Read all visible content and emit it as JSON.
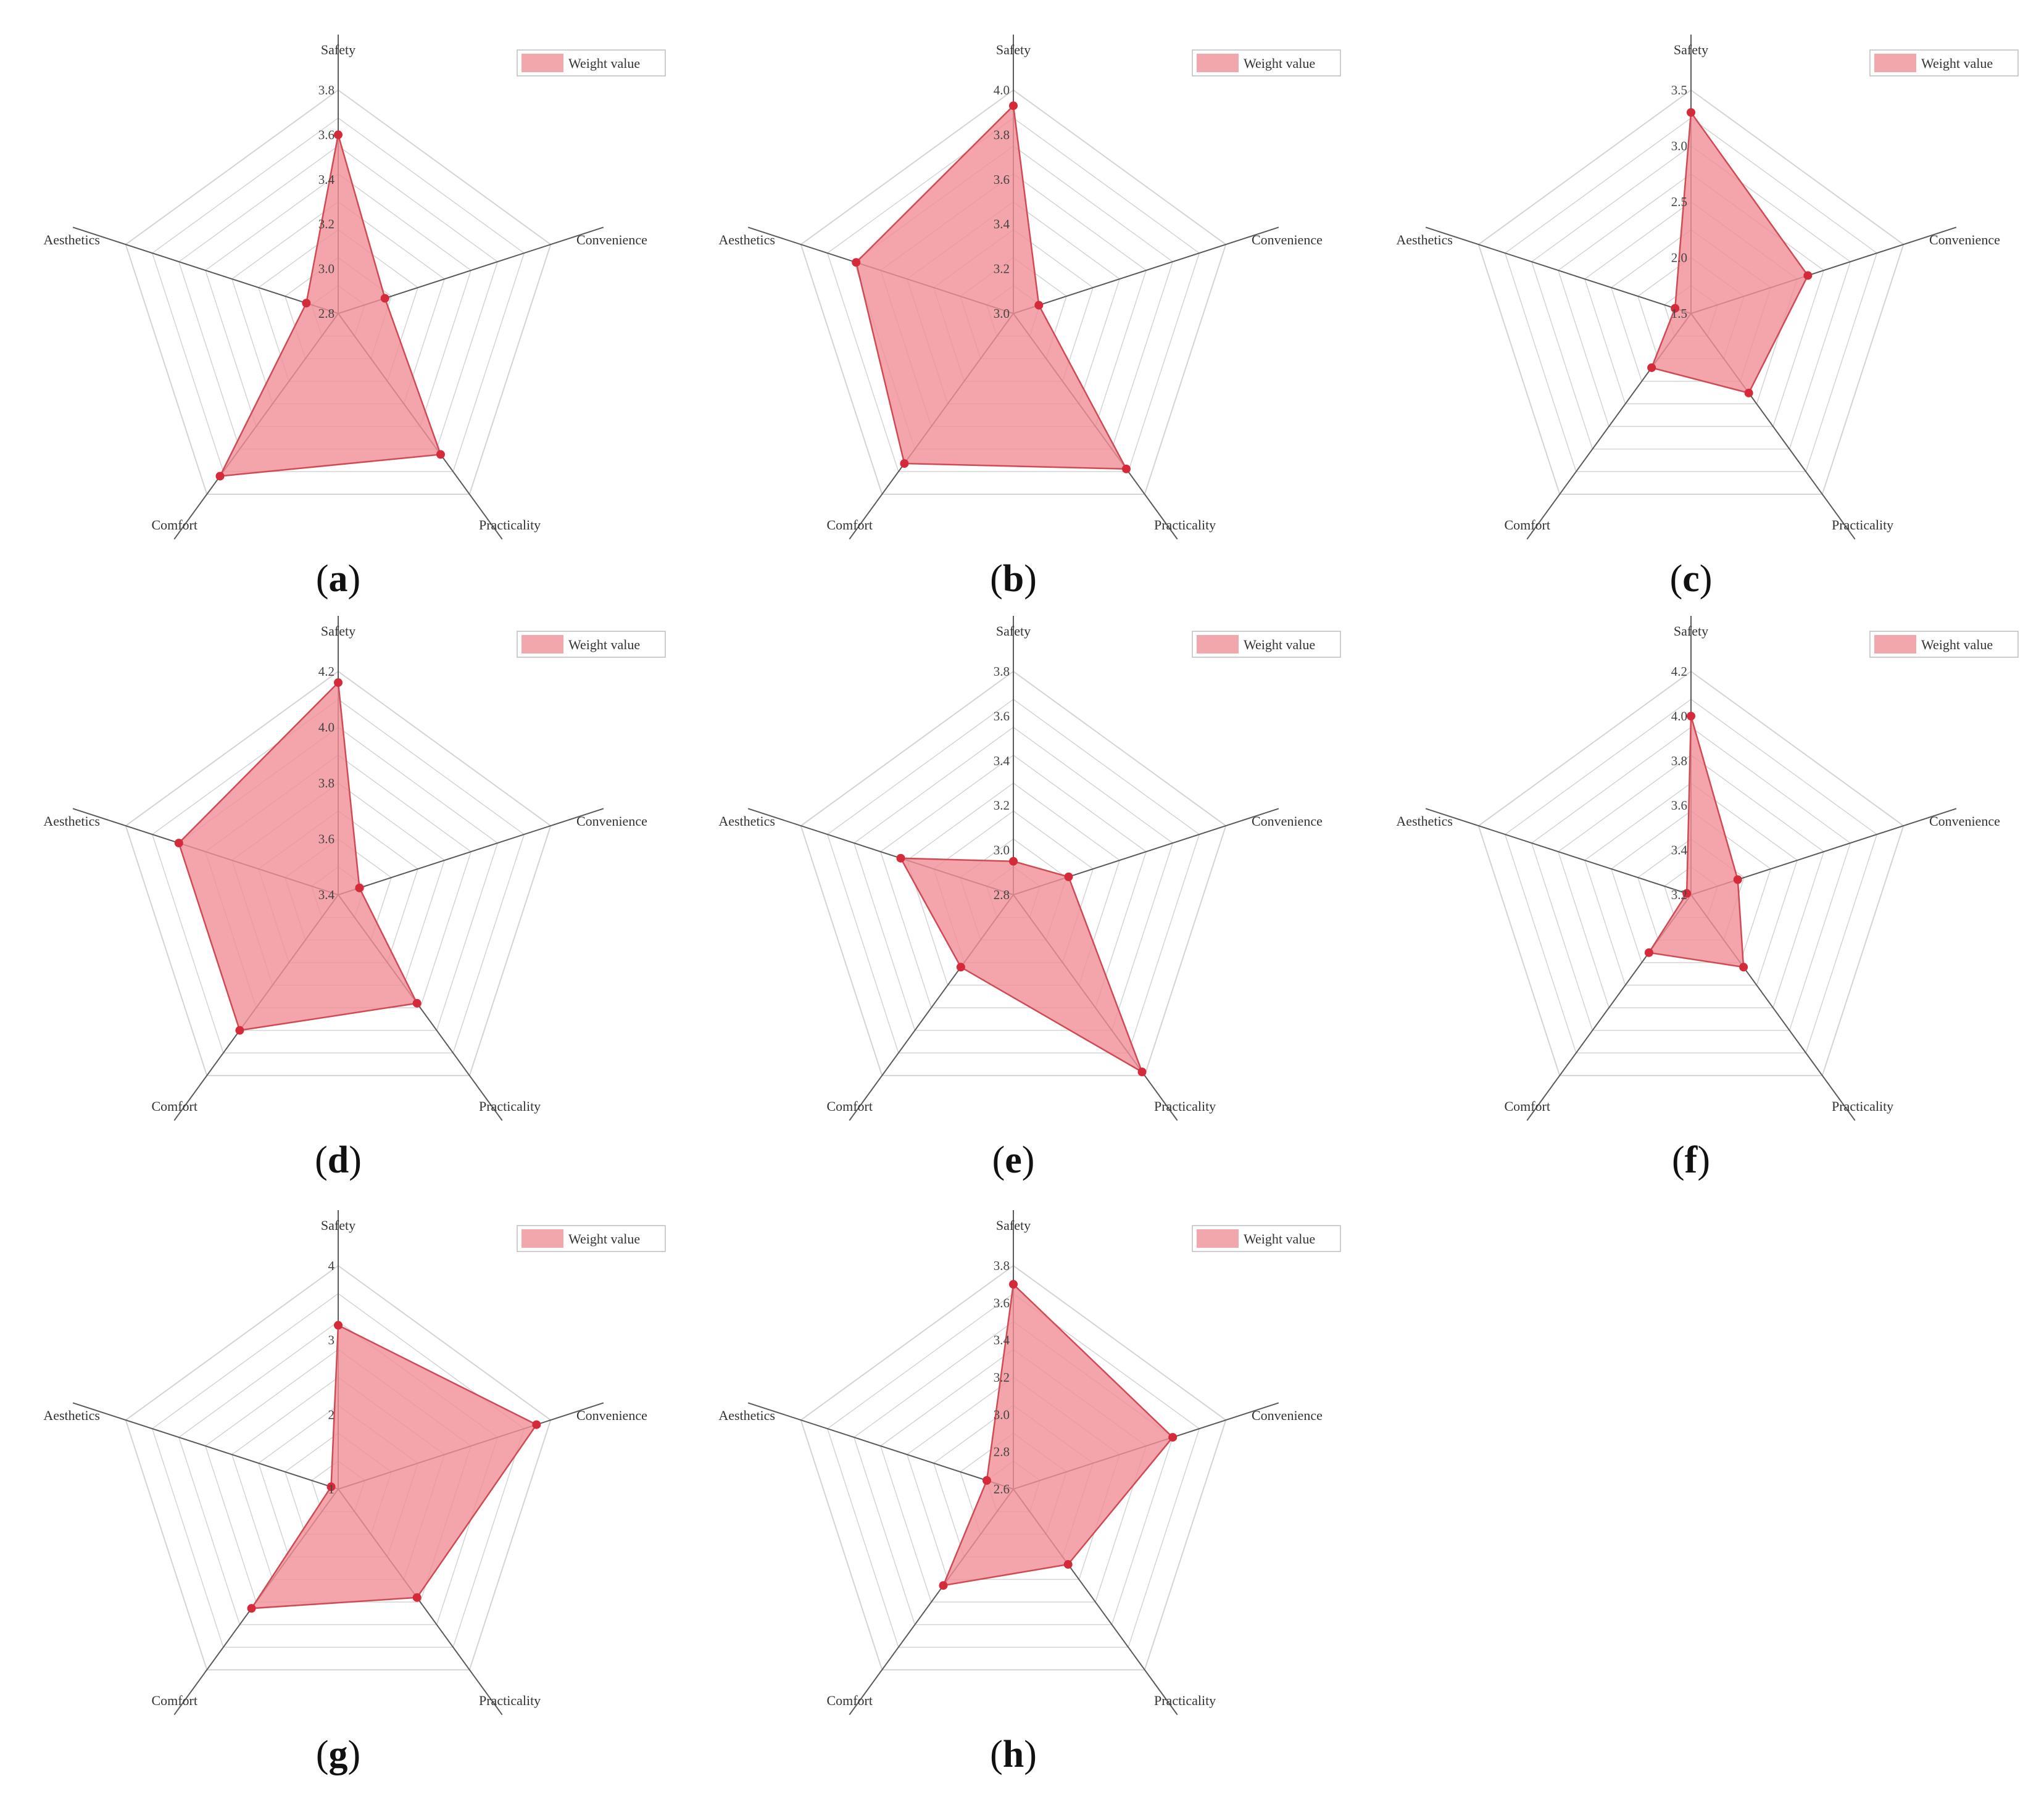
{
  "legend_label": "Weight value",
  "colors": {
    "fill": "#f08f96",
    "stroke": "#d04a55",
    "marker": "#d42a3a",
    "grid": "#d4d4d4",
    "axis": "#5a5a5a",
    "legend_fill": "#f2a7ad",
    "legend_border": "#bdbdbd"
  },
  "chart_data": [
    {
      "type": "radar",
      "panel": "a",
      "axes": [
        "Safety",
        "Convenience",
        "Practicality",
        "Comfort",
        "Aesthetics"
      ],
      "rmin": 2.8,
      "rmax": 3.8,
      "ticks": [
        "2.8",
        "3.0",
        "3.2",
        "3.4",
        "3.6",
        "3.8"
      ],
      "legend": "Weight value",
      "series": [
        {
          "name": "Weight value",
          "values": [
            3.6,
            3.02,
            3.58,
            3.7,
            2.95
          ]
        }
      ]
    },
    {
      "type": "radar",
      "panel": "b",
      "axes": [
        "Safety",
        "Convenience",
        "Practicality",
        "Comfort",
        "Aesthetics"
      ],
      "rmin": 3.0,
      "rmax": 4.0,
      "ticks": [
        "3.0",
        "3.2",
        "3.4",
        "3.6",
        "3.8",
        "4.0"
      ],
      "legend": "Weight value",
      "series": [
        {
          "name": "Weight value",
          "values": [
            3.93,
            3.12,
            3.86,
            3.83,
            3.74
          ]
        }
      ]
    },
    {
      "type": "radar",
      "panel": "c",
      "axes": [
        "Safety",
        "Convenience",
        "Practicality",
        "Comfort",
        "Aesthetics"
      ],
      "rmin": 1.5,
      "rmax": 3.5,
      "ticks": [
        "1.5",
        "2.0",
        "2.5",
        "3.0",
        "3.5"
      ],
      "legend": "Weight value",
      "series": [
        {
          "name": "Weight value",
          "values": [
            3.3,
            2.6,
            2.38,
            2.1,
            1.65
          ]
        }
      ]
    },
    {
      "type": "radar",
      "panel": "d",
      "axes": [
        "Safety",
        "Convenience",
        "Practicality",
        "Comfort",
        "Aesthetics"
      ],
      "rmin": 3.4,
      "rmax": 4.2,
      "ticks": [
        "3.4",
        "3.6",
        "3.8",
        "4.0",
        "4.2"
      ],
      "legend": "Weight value",
      "series": [
        {
          "name": "Weight value",
          "values": [
            4.16,
            3.48,
            3.88,
            4.0,
            4.0
          ]
        }
      ]
    },
    {
      "type": "radar",
      "panel": "e",
      "axes": [
        "Safety",
        "Convenience",
        "Practicality",
        "Comfort",
        "Aesthetics"
      ],
      "rmin": 2.8,
      "rmax": 3.8,
      "ticks": [
        "2.8",
        "3.0",
        "3.2",
        "3.4",
        "3.6",
        "3.8"
      ],
      "legend": "Weight value",
      "series": [
        {
          "name": "Weight value",
          "values": [
            2.95,
            3.06,
            3.78,
            3.2,
            3.33
          ]
        }
      ]
    },
    {
      "type": "radar",
      "panel": "f",
      "axes": [
        "Safety",
        "Convenience",
        "Practicality",
        "Comfort",
        "Aesthetics"
      ],
      "rmin": 3.2,
      "rmax": 4.2,
      "ticks": [
        "3.2",
        "3.4",
        "3.6",
        "3.8",
        "4.0",
        "4.2"
      ],
      "legend": "Weight value",
      "series": [
        {
          "name": "Weight value",
          "values": [
            4.0,
            3.42,
            3.6,
            3.52,
            3.22
          ]
        }
      ]
    },
    {
      "type": "radar",
      "panel": "g",
      "axes": [
        "Safety",
        "Convenience",
        "Practicality",
        "Comfort",
        "Aesthetics"
      ],
      "rmin": 1,
      "rmax": 4,
      "ticks": [
        "1",
        "2",
        "3",
        "4"
      ],
      "legend": "Weight value",
      "series": [
        {
          "name": "Weight value",
          "values": [
            3.2,
            3.8,
            2.8,
            2.98,
            1.1
          ]
        }
      ]
    },
    {
      "type": "radar",
      "panel": "h",
      "axes": [
        "Safety",
        "Convenience",
        "Practicality",
        "Comfort",
        "Aesthetics"
      ],
      "rmin": 2.6,
      "rmax": 3.8,
      "ticks": [
        "2.6",
        "2.8",
        "3.0",
        "3.2",
        "3.4",
        "3.6",
        "3.8"
      ],
      "legend": "Weight value",
      "series": [
        {
          "name": "Weight value",
          "values": [
            3.7,
            3.5,
            3.1,
            3.24,
            2.75
          ]
        }
      ]
    }
  ]
}
